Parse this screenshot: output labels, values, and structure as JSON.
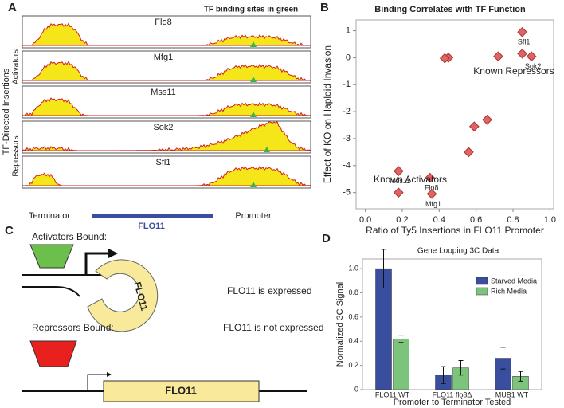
{
  "panel_labels": [
    "A",
    "B",
    "C",
    "D"
  ],
  "panel_a": {
    "title": "TF binding sites in green",
    "group_label": "TF-Directed Insertions",
    "groups": [
      "Activators",
      "Repressors"
    ],
    "tracks": [
      "Flo8",
      "Mfg1",
      "Mss11",
      "Sok2",
      "Sfl1"
    ],
    "terminator": "Terminator",
    "gene": "FLO11",
    "promoter": "Promoter"
  },
  "panel_c": {
    "activators": "Activators Bound:",
    "expressed": "FLO11 is expressed",
    "loop_gene": "FLO11",
    "repressors": "Repressors Bound:",
    "not_expressed": "FLO11 is not expressed",
    "gene": "FLO11"
  },
  "chart_data": [
    {
      "type": "scatter",
      "title": "Binding Correlates with TF Function",
      "x_label": "Ratio of Ty5 Insertions in FLO11 Promoter",
      "y_label": "Effect of KO on Haploid Invasion",
      "x": [
        0.85,
        0.85,
        0.9,
        0.72,
        0.45,
        0.43,
        0.66,
        0.59,
        0.56,
        0.35,
        0.36,
        0.18,
        0.18
      ],
      "y": [
        0.95,
        0.15,
        0.05,
        0.05,
        0.0,
        -0.02,
        -2.3,
        -2.55,
        -3.5,
        -4.45,
        -5.05,
        -4.2,
        -5.0
      ],
      "point_labels": [
        "Sfl1",
        null,
        "Sok2",
        null,
        null,
        null,
        null,
        null,
        null,
        "Flo8",
        "Mfg1",
        "Mss11",
        null
      ],
      "annotations": [
        "Known Repressors",
        "Known Activators"
      ],
      "color": "#e06464",
      "xlim": [
        -0.05,
        1.02
      ],
      "xticks": [
        {
          "value": 0,
          "label": "0.0"
        },
        0.2,
        0.4,
        0.6,
        0.8,
        {
          "value": 1,
          "label": "1.0"
        }
      ],
      "ylim": [
        -5.6,
        1.4
      ],
      "yticks": [
        -5,
        -4,
        -3,
        -2,
        -1,
        0,
        1
      ]
    },
    {
      "type": "bar",
      "title": "Gene Looping 3C Data",
      "x_label": "Promoter to Terminator Tested",
      "y_label": "Normalized 3C Signal",
      "categories": [
        "FLO11 WT",
        "FLO11 flo8Δ",
        "MUB1 WT"
      ],
      "series": [
        {
          "name": "Starved Media",
          "color": "#3a4ea0",
          "values": [
            1.0,
            0.12,
            0.26
          ],
          "errors": [
            0.16,
            0.07,
            0.09
          ]
        },
        {
          "name": "Rich Media",
          "color": "#7cc47c",
          "values": [
            0.42,
            0.18,
            0.11
          ],
          "errors": [
            0.03,
            0.06,
            0.04
          ]
        }
      ],
      "ylim": [
        0,
        1.08
      ],
      "yticks": [
        0,
        0.2,
        0.4,
        0.6,
        0.8,
        {
          "value": 1,
          "label": "1.0"
        }
      ],
      "legend": "upper-right"
    }
  ]
}
